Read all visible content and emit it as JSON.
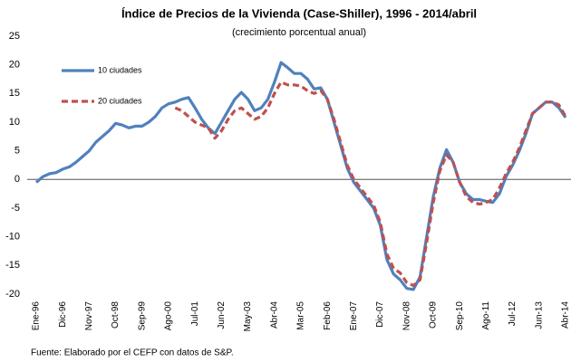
{
  "chart_data": {
    "type": "line",
    "title": "Índice de Precios de la Vivienda (Case-Shiller), 1996 - 2014/abril",
    "subtitle": "(crecimiento porcentual anual)",
    "source": "Fuente: Elaborado por el CEFP con datos de S&P.",
    "categories": [
      "Ene-96",
      null,
      null,
      null,
      "Dic-96",
      null,
      null,
      null,
      "Nov-97",
      null,
      null,
      null,
      "Oct-98",
      null,
      null,
      null,
      "Sep-99",
      null,
      null,
      null,
      "Ago-00",
      null,
      null,
      null,
      "Jul-01",
      null,
      null,
      null,
      "Jun-02",
      null,
      null,
      null,
      "May-03",
      null,
      null,
      null,
      "Abr-04",
      null,
      null,
      null,
      "Mar-05",
      null,
      null,
      null,
      "Feb-06",
      null,
      null,
      null,
      "Ene-07",
      null,
      null,
      null,
      "Dic-07",
      null,
      null,
      null,
      "Nov-08",
      null,
      null,
      null,
      "Oct-09",
      null,
      null,
      null,
      "Sep-10",
      null,
      null,
      null,
      "Ago-11",
      null,
      null,
      null,
      "Jul-12",
      null,
      null,
      null,
      "Jun-13",
      null,
      null,
      null,
      "Abr-14"
    ],
    "series": [
      {
        "name": "10 ciudades",
        "color": "#4f81bd",
        "dash": false,
        "values": [
          -0.5,
          0.5,
          1,
          1.2,
          1.8,
          2.2,
          3,
          4,
          5,
          6.5,
          7.5,
          8.5,
          9.8,
          9.5,
          9,
          9.3,
          9.3,
          10,
          11,
          12.5,
          13.2,
          13.5,
          14,
          14.3,
          12.5,
          10.5,
          9,
          8,
          10,
          12,
          14,
          15.2,
          14,
          12,
          12.5,
          14,
          17,
          20.4,
          19.5,
          18.5,
          18.5,
          17.5,
          15.8,
          16,
          14,
          10,
          6,
          2,
          -0.5,
          -2,
          -3.5,
          -5,
          -8,
          -14,
          -16.5,
          -17.5,
          -19,
          -19.2,
          -17,
          -10,
          -3,
          2,
          5.2,
          3,
          -0.5,
          -2.5,
          -3.5,
          -3.5,
          -3.8,
          -4,
          -2.5,
          0.5,
          2.5,
          5,
          8,
          11.5,
          12.5,
          13.5,
          13.5,
          12.5,
          10.8
        ]
      },
      {
        "name": "20 ciudades",
        "color": "#c0504d",
        "dash": true,
        "values": [
          null,
          null,
          null,
          null,
          null,
          null,
          null,
          null,
          null,
          null,
          null,
          null,
          null,
          null,
          null,
          null,
          null,
          null,
          null,
          null,
          null,
          12.5,
          12,
          11,
          10,
          9.5,
          9,
          7.2,
          8.5,
          10.5,
          12,
          12.5,
          11.5,
          10.5,
          11,
          12.5,
          15,
          17,
          16.5,
          16.5,
          16.3,
          15.5,
          15,
          15.5,
          14,
          10.5,
          6.5,
          2.5,
          0,
          -1.5,
          -3,
          -4.5,
          -7.5,
          -13,
          -15.5,
          -16.3,
          -18,
          -18.5,
          -17.5,
          -11,
          -4,
          1.5,
          4.3,
          3,
          -0.5,
          -3,
          -4,
          -4.3,
          -4,
          -3.5,
          -1.5,
          1,
          3,
          5.5,
          8.5,
          11.5,
          12.5,
          13.5,
          13.5,
          13,
          11
        ]
      }
    ],
    "ylim": [
      -20,
      25
    ],
    "yticks": [
      -20,
      -15,
      -10,
      -5,
      0,
      5,
      10,
      15,
      20,
      25
    ],
    "grid": false,
    "legend": "upper left"
  }
}
